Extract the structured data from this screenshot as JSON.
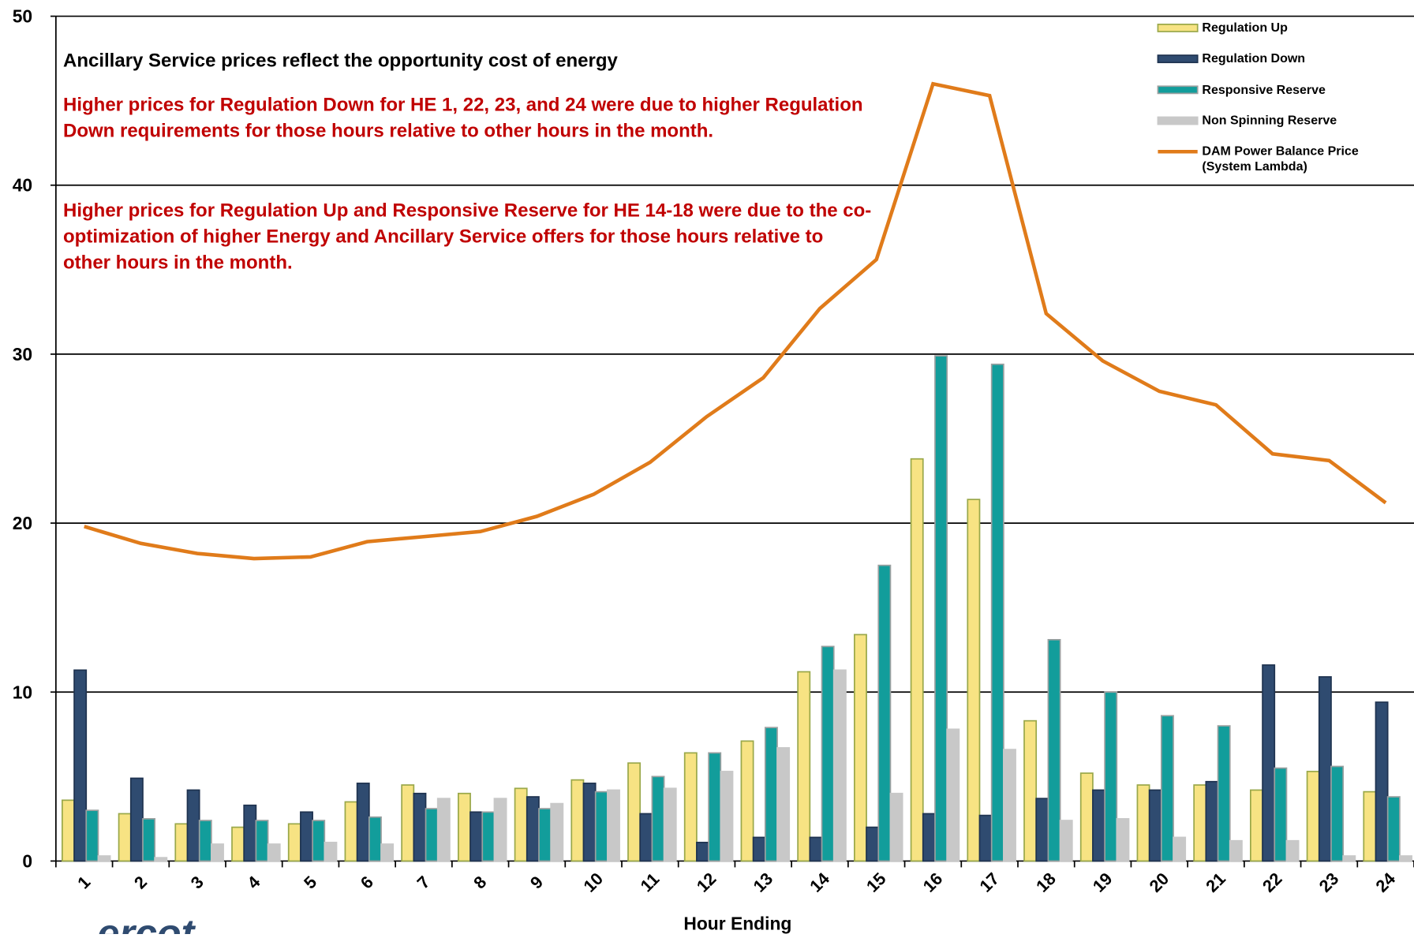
{
  "chart_data": {
    "type": "bar",
    "annotations": [
      "Ancillary Service prices reflect the opportunity cost of energy",
      "Higher prices for Regulation Down for HE 1, 22, 23, and 24 were due to higher Regulation Down requirements for those hours relative to other hours in the month.",
      "Higher prices for Regulation Up and Responsive Reserve for HE 14-18 were due to the co-optimization of higher Energy and Ancillary Service offers for those hours relative to other hours in the month."
    ],
    "xlabel": "Hour Ending",
    "logo": "ercot",
    "categories": [
      "1",
      "2",
      "3",
      "4",
      "5",
      "6",
      "7",
      "8",
      "9",
      "10",
      "11",
      "12",
      "13",
      "14",
      "15",
      "16",
      "17",
      "18",
      "19",
      "20",
      "21",
      "22",
      "23",
      "24"
    ],
    "ylim": [
      0,
      50
    ],
    "yticks": [
      0,
      10,
      20,
      30,
      40,
      50
    ],
    "grid": true,
    "series": [
      {
        "name": "Regulation Up",
        "type": "bar",
        "color": "#f7e383",
        "values": [
          3.6,
          2.8,
          2.2,
          2.0,
          2.2,
          3.5,
          4.5,
          4.0,
          4.3,
          4.8,
          5.8,
          6.4,
          7.1,
          11.2,
          13.4,
          23.8,
          21.4,
          8.3,
          5.2,
          4.5,
          4.5,
          4.2,
          5.3,
          4.1
        ]
      },
      {
        "name": "Regulation Down",
        "type": "bar",
        "color": "#2f4b70",
        "values": [
          11.3,
          4.9,
          4.2,
          3.3,
          2.9,
          4.6,
          4.0,
          2.9,
          3.8,
          4.6,
          2.8,
          1.1,
          1.4,
          1.4,
          2.0,
          2.8,
          2.7,
          3.7,
          4.2,
          4.2,
          4.7,
          11.6,
          10.9,
          9.4
        ]
      },
      {
        "name": "Responsive Reserve",
        "type": "bar",
        "color": "#129d9b",
        "values": [
          3.0,
          2.5,
          2.4,
          2.4,
          2.4,
          2.6,
          3.1,
          2.9,
          3.1,
          4.1,
          5.0,
          6.4,
          7.9,
          12.7,
          17.5,
          29.9,
          29.4,
          13.1,
          10.0,
          8.6,
          8.0,
          5.5,
          5.6,
          3.8
        ]
      },
      {
        "name": "Non Spinning Reserve",
        "type": "bar",
        "color": "#c8c8c8",
        "values": [
          0.3,
          0.2,
          1.0,
          1.0,
          1.1,
          1.0,
          3.7,
          3.7,
          3.4,
          4.2,
          4.3,
          5.3,
          6.7,
          11.3,
          4.0,
          7.8,
          6.6,
          2.4,
          2.5,
          1.4,
          1.2,
          1.2,
          0.3,
          0.3
        ]
      },
      {
        "name": "DAM Power Balance Price (System Lambda)",
        "type": "line",
        "color": "#e07b1a",
        "values": [
          19.8,
          18.8,
          18.2,
          17.9,
          18.0,
          18.9,
          19.2,
          19.5,
          20.4,
          21.7,
          23.6,
          26.3,
          28.6,
          32.7,
          35.6,
          46.0,
          45.3,
          32.4,
          29.6,
          27.8,
          27.0,
          24.1,
          23.7,
          21.2
        ]
      }
    ]
  }
}
